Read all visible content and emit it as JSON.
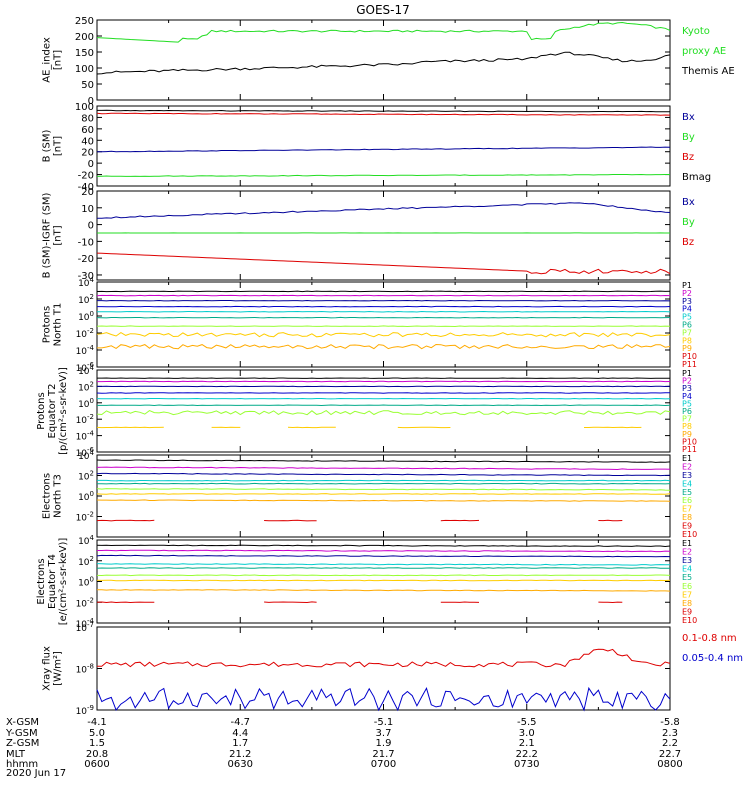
{
  "title": "GOES-17",
  "colors": {
    "black": "#000000",
    "red": "#dd0000",
    "green": "#22dd22",
    "blue": "#0000cc",
    "cyan": "#00cccc",
    "orange": "#ff9900",
    "yellow": "#ffcc00",
    "purple": "#cc00cc",
    "lime": "#99ff33",
    "teal": "#00aa88",
    "navy": "#000099",
    "gold": "#ffaa00"
  },
  "chart_data": [
    {
      "type": "line",
      "ylabel": [
        "AE_index",
        "[nT]"
      ],
      "ylim": [
        0,
        250
      ],
      "yticks": [
        "0",
        "50",
        "100",
        "150",
        "200",
        "250"
      ],
      "legend": [
        {
          "text": "Kyoto",
          "color": "green"
        },
        {
          "text": "proxy AE",
          "color": "green"
        },
        {
          "text": "Themis AE",
          "color": "black"
        }
      ],
      "series": [
        {
          "name": "Kyoto proxy AE",
          "color": "green",
          "shape": "kyoto"
        },
        {
          "name": "Themis AE",
          "color": "black",
          "shape": "themis"
        }
      ]
    },
    {
      "type": "line",
      "ylabel": [
        "B (SM)",
        "[nT]"
      ],
      "ylim": [
        -40,
        100
      ],
      "yticks": [
        "-40",
        "-20",
        "0",
        "20",
        "40",
        "60",
        "80",
        "100"
      ],
      "legend": [
        {
          "text": "Bx",
          "color": "navy"
        },
        {
          "text": "By",
          "color": "green"
        },
        {
          "text": "Bz",
          "color": "red"
        },
        {
          "text": "Bmag",
          "color": "black"
        }
      ],
      "series": [
        {
          "name": "Bmag",
          "color": "black",
          "shape": "flat",
          "start": 92,
          "end": 90
        },
        {
          "name": "Bz",
          "color": "red",
          "shape": "flat",
          "start": 87,
          "end": 84
        },
        {
          "name": "Bx",
          "color": "navy",
          "shape": "flat",
          "start": 20,
          "end": 28
        },
        {
          "name": "By",
          "color": "green",
          "shape": "flat",
          "start": -23,
          "end": -20
        }
      ]
    },
    {
      "type": "line",
      "ylabel": [
        "B (SM)-IGRF (SM)",
        "[nT]"
      ],
      "ylim": [
        -33,
        20
      ],
      "yticks": [
        "-30",
        "-20",
        "-10",
        "0",
        "10",
        "20"
      ],
      "legend": [
        {
          "text": "Bx",
          "color": "navy"
        },
        {
          "text": "By",
          "color": "green"
        },
        {
          "text": "Bz",
          "color": "red"
        }
      ],
      "series": [
        {
          "name": "Bx",
          "color": "navy",
          "shape": "hump",
          "start": 4,
          "peak": 13,
          "end": 7
        },
        {
          "name": "By",
          "color": "green",
          "shape": "flat",
          "start": -5,
          "end": -5
        },
        {
          "name": "Bz",
          "color": "red",
          "shape": "decline",
          "start": -17,
          "end": -28
        }
      ]
    },
    {
      "type": "line",
      "scale": "log",
      "ylabel": [
        "Protons",
        "North T1"
      ],
      "ylim": [
        -6,
        4
      ],
      "yticks": [
        "10^4",
        "10^2",
        "10^0",
        "10^-2",
        "10^-4",
        "10^-6"
      ],
      "legend": [
        {
          "text": "P1",
          "color": "black"
        },
        {
          "text": "P2",
          "color": "purple"
        },
        {
          "text": "P3",
          "color": "navy"
        },
        {
          "text": "P4",
          "color": "blue"
        },
        {
          "text": "P5",
          "color": "cyan"
        },
        {
          "text": "P6",
          "color": "teal"
        },
        {
          "text": "P7",
          "color": "lime"
        },
        {
          "text": "P8",
          "color": "yellow"
        },
        {
          "text": "P9",
          "color": "gold"
        },
        {
          "text": "P10",
          "color": "red"
        },
        {
          "text": "P11",
          "color": "red"
        }
      ],
      "series": [
        {
          "name": "P1",
          "color": "black",
          "shape": "flat",
          "start": 2.9,
          "end": 2.9
        },
        {
          "name": "P2",
          "color": "purple",
          "shape": "flat",
          "start": 2.4,
          "end": 2.4
        },
        {
          "name": "P3",
          "color": "navy",
          "shape": "flat",
          "start": 1.8,
          "end": 1.8
        },
        {
          "name": "P4",
          "color": "blue",
          "shape": "flat",
          "start": 1.1,
          "end": 1.1
        },
        {
          "name": "P5",
          "color": "cyan",
          "shape": "flat",
          "start": 0.5,
          "end": 0.5
        },
        {
          "name": "P6",
          "color": "teal",
          "shape": "flat",
          "start": -0.2,
          "end": -0.2
        },
        {
          "name": "P7",
          "color": "lime",
          "shape": "flat",
          "start": -1.2,
          "end": -1.2
        },
        {
          "name": "P8",
          "color": "yellow",
          "shape": "noisy",
          "start": -2.2,
          "end": -2.2
        },
        {
          "name": "P9",
          "color": "gold",
          "shape": "noisy",
          "start": -3.6,
          "end": -3.6
        }
      ]
    },
    {
      "type": "line",
      "scale": "log",
      "ylabel": [
        "Protons",
        "Equator T2",
        "[p/(cm²-s-sr-keV)]"
      ],
      "ylim": [
        -6,
        4
      ],
      "yticks": [
        "10^4",
        "10^2",
        "10^0",
        "10^-2",
        "10^-4",
        "10^-6"
      ],
      "legend": [
        {
          "text": "P1",
          "color": "black"
        },
        {
          "text": "P2",
          "color": "purple"
        },
        {
          "text": "P3",
          "color": "navy"
        },
        {
          "text": "P4",
          "color": "blue"
        },
        {
          "text": "P5",
          "color": "cyan"
        },
        {
          "text": "P6",
          "color": "teal"
        },
        {
          "text": "P7",
          "color": "lime"
        },
        {
          "text": "P8",
          "color": "yellow"
        },
        {
          "text": "P9",
          "color": "gold"
        },
        {
          "text": "P10",
          "color": "red"
        },
        {
          "text": "P11",
          "color": "red"
        }
      ],
      "series": [
        {
          "name": "P1",
          "color": "black",
          "shape": "flat",
          "start": 3.0,
          "end": 3.0
        },
        {
          "name": "P2",
          "color": "purple",
          "shape": "flat",
          "start": 2.6,
          "end": 2.6
        },
        {
          "name": "P3",
          "color": "navy",
          "shape": "flat",
          "start": 2.0,
          "end": 2.0
        },
        {
          "name": "P4",
          "color": "blue",
          "shape": "flat",
          "start": 1.2,
          "end": 1.2
        },
        {
          "name": "P5",
          "color": "cyan",
          "shape": "flat",
          "start": 0.5,
          "end": 0.5
        },
        {
          "name": "P6",
          "color": "teal",
          "shape": "flat",
          "start": -0.3,
          "end": -0.3
        },
        {
          "name": "P7",
          "color": "lime",
          "shape": "noisy",
          "start": -1.2,
          "end": -1.2
        },
        {
          "name": "P8",
          "color": "yellow",
          "shape": "gappy",
          "start": -3.0,
          "end": -3.0
        }
      ]
    },
    {
      "type": "line",
      "scale": "log",
      "ylabel": [
        "Electrons",
        "North T3"
      ],
      "ylim": [
        -4,
        4
      ],
      "yticks": [
        "10^4",
        "10^2",
        "10^0",
        "10^-2"
      ],
      "legend": [
        {
          "text": "E1",
          "color": "black"
        },
        {
          "text": "E2",
          "color": "purple"
        },
        {
          "text": "E3",
          "color": "navy"
        },
        {
          "text": "E4",
          "color": "cyan"
        },
        {
          "text": "E5",
          "color": "teal"
        },
        {
          "text": "E6",
          "color": "lime"
        },
        {
          "text": "E7",
          "color": "yellow"
        },
        {
          "text": "E8",
          "color": "gold"
        },
        {
          "text": "E9",
          "color": "red"
        },
        {
          "text": "E10",
          "color": "red"
        }
      ],
      "series": [
        {
          "name": "E1",
          "color": "black",
          "shape": "flat",
          "start": 3.5,
          "end": 3.3
        },
        {
          "name": "E2",
          "color": "purple",
          "shape": "flat",
          "start": 2.8,
          "end": 2.6
        },
        {
          "name": "E3",
          "color": "navy",
          "shape": "flat",
          "start": 2.2,
          "end": 2.0
        },
        {
          "name": "E4",
          "color": "cyan",
          "shape": "flat",
          "start": 1.5,
          "end": 1.5
        },
        {
          "name": "E5",
          "color": "teal",
          "shape": "flat",
          "start": 1.2,
          "end": 1.2
        },
        {
          "name": "E6",
          "color": "lime",
          "shape": "flat",
          "start": 0.7,
          "end": 0.6
        },
        {
          "name": "E7",
          "color": "yellow",
          "shape": "flat",
          "start": 0.2,
          "end": 0.2
        },
        {
          "name": "E8",
          "color": "gold",
          "shape": "flat",
          "start": -0.4,
          "end": -0.5
        },
        {
          "name": "E9",
          "color": "red",
          "shape": "sparse",
          "start": -2.4,
          "end": -2.4
        }
      ]
    },
    {
      "type": "line",
      "scale": "log",
      "ylabel": [
        "Electrons",
        "Equator T4",
        "[e/(cm²-s-sr-keV)]"
      ],
      "ylim": [
        -4,
        4
      ],
      "yticks": [
        "10^4",
        "10^2",
        "10^0",
        "10^-2",
        "10^-4"
      ],
      "legend": [
        {
          "text": "E1",
          "color": "black"
        },
        {
          "text": "E2",
          "color": "purple"
        },
        {
          "text": "E3",
          "color": "navy"
        },
        {
          "text": "E4",
          "color": "cyan"
        },
        {
          "text": "E5",
          "color": "teal"
        },
        {
          "text": "E6",
          "color": "lime"
        },
        {
          "text": "E7",
          "color": "yellow"
        },
        {
          "text": "E8",
          "color": "gold"
        },
        {
          "text": "E9",
          "color": "red"
        },
        {
          "text": "E10",
          "color": "red"
        }
      ],
      "series": [
        {
          "name": "E1",
          "color": "black",
          "shape": "flat",
          "start": 3.5,
          "end": 3.4
        },
        {
          "name": "E2",
          "color": "purple",
          "shape": "flat",
          "start": 3.0,
          "end": 2.9
        },
        {
          "name": "E3",
          "color": "navy",
          "shape": "flat",
          "start": 2.5,
          "end": 2.4
        },
        {
          "name": "E4",
          "color": "cyan",
          "shape": "flat",
          "start": 1.7,
          "end": 1.6
        },
        {
          "name": "E5",
          "color": "teal",
          "shape": "flat",
          "start": 1.3,
          "end": 1.3
        },
        {
          "name": "E6",
          "color": "lime",
          "shape": "flat",
          "start": 0.6,
          "end": 0.6
        },
        {
          "name": "E7",
          "color": "yellow",
          "shape": "flat",
          "start": 0.1,
          "end": 0.1
        },
        {
          "name": "E8",
          "color": "gold",
          "shape": "flat",
          "start": -0.8,
          "end": -0.9
        },
        {
          "name": "E9",
          "color": "red",
          "shape": "sparse",
          "start": -2.0,
          "end": -2.0
        }
      ]
    },
    {
      "type": "line",
      "scale": "log",
      "ylabel": [
        "Xray flux",
        "[W/m²]"
      ],
      "ylim": [
        -9,
        -7
      ],
      "yticks": [
        "10^-7",
        "10^-8",
        "10^-9"
      ],
      "legend": [
        {
          "text": "0.1-0.8 nm",
          "color": "red"
        },
        {
          "text": "0.05-0.4 nm",
          "color": "blue"
        }
      ],
      "series": [
        {
          "name": "0.1-0.8 nm",
          "color": "red",
          "shape": "xlong"
        },
        {
          "name": "0.05-0.4 nm",
          "color": "blue",
          "shape": "xshort"
        }
      ]
    }
  ],
  "footer": {
    "row_labels": [
      "X-GSM",
      "Y-GSM",
      "Z-GSM",
      "MLT",
      "hhmm",
      "2020 Jun 17"
    ],
    "columns": [
      {
        "values": [
          "-4.1",
          "5.0",
          "1.5",
          "20.8",
          "0600"
        ]
      },
      {
        "values": [
          "-4.7",
          "4.4",
          "1.7",
          "21.2",
          "0630"
        ]
      },
      {
        "values": [
          "-5.1",
          "3.7",
          "1.9",
          "21.7",
          "0700"
        ]
      },
      {
        "values": [
          "-5.5",
          "3.0",
          "2.1",
          "22.2",
          "0730"
        ]
      },
      {
        "values": [
          "-5.8",
          "2.3",
          "2.2",
          "22.7",
          "0800"
        ]
      }
    ]
  }
}
